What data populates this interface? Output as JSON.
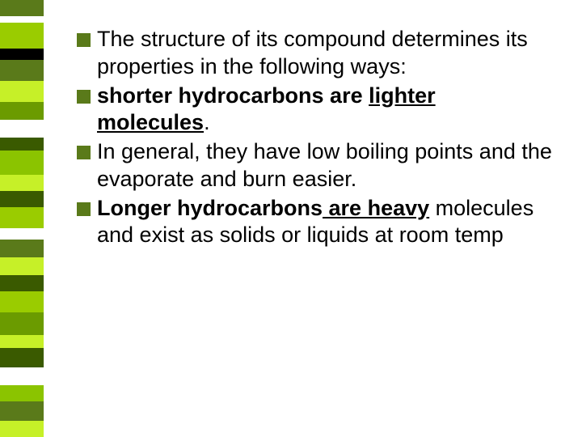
{
  "sidebar": {
    "stripes": [
      {
        "h": 20,
        "c": "#5a7a1a"
      },
      {
        "h": 8,
        "c": "#ffffff"
      },
      {
        "h": 32,
        "c": "#9acc00"
      },
      {
        "h": 14,
        "c": "#000000"
      },
      {
        "h": 26,
        "c": "#5a7a1a"
      },
      {
        "h": 26,
        "c": "#c6f028"
      },
      {
        "h": 22,
        "c": "#6b9b00"
      },
      {
        "h": 22,
        "c": "#ffffff"
      },
      {
        "h": 16,
        "c": "#3a5a00"
      },
      {
        "h": 30,
        "c": "#8bc400"
      },
      {
        "h": 20,
        "c": "#c6f028"
      },
      {
        "h": 20,
        "c": "#3a5a00"
      },
      {
        "h": 26,
        "c": "#9acc00"
      },
      {
        "h": 14,
        "c": "#ffffff"
      },
      {
        "h": 22,
        "c": "#5a7a1a"
      },
      {
        "h": 22,
        "c": "#c6f028"
      },
      {
        "h": 20,
        "c": "#3a5a00"
      },
      {
        "h": 26,
        "c": "#9acc00"
      },
      {
        "h": 28,
        "c": "#6b9b00"
      },
      {
        "h": 16,
        "c": "#c6f028"
      },
      {
        "h": 24,
        "c": "#3a5a00"
      },
      {
        "h": 22,
        "c": "#ffffff"
      },
      {
        "h": 20,
        "c": "#8bc400"
      },
      {
        "h": 24,
        "c": "#5a7a1a"
      },
      {
        "h": 20,
        "c": "#c6f028"
      }
    ]
  },
  "bullet_color": "#5a7a1a",
  "items": [
    {
      "runs": [
        {
          "t": "The structure of its compound determines its properties in the following ways:",
          "b": false,
          "u": false
        }
      ]
    },
    {
      "runs": [
        {
          "t": "shorter  hydrocarbons are ",
          "b": true,
          "u": false
        },
        {
          "t": "lighter molecules",
          "b": true,
          "u": true
        },
        {
          "t": ".",
          "b": false,
          "u": false
        }
      ]
    },
    {
      "runs": [
        {
          "t": "In general, they have low boiling points and the evaporate and burn easier.",
          "b": false,
          "u": false
        }
      ]
    },
    {
      "runs": [
        {
          "t": "Longer hydrocarbons",
          "b": true,
          "u": false
        },
        {
          "t": " are heavy",
          "b": true,
          "u": true
        },
        {
          "t": " molecules and exist as solids or liquids at room temp",
          "b": false,
          "u": false
        }
      ]
    }
  ]
}
